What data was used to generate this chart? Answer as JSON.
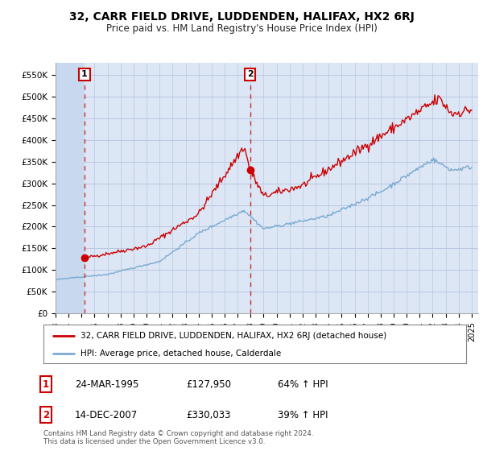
{
  "title": "32, CARR FIELD DRIVE, LUDDENDEN, HALIFAX, HX2 6RJ",
  "subtitle": "Price paid vs. HM Land Registry's House Price Index (HPI)",
  "background_color": "#dce6f5",
  "hatch_bg_color": "#c8d8ee",
  "grid_color": "#b8c8e0",
  "red_line_color": "#cc0000",
  "blue_line_color": "#7aaad0",
  "point1_x": 1995.22,
  "point1_y": 127950,
  "point2_x": 2007.96,
  "point2_y": 330033,
  "xmin": 1993.0,
  "xmax": 2025.5,
  "ymin": 0,
  "ymax": 577000,
  "yticks": [
    0,
    50000,
    100000,
    150000,
    200000,
    250000,
    300000,
    350000,
    400000,
    450000,
    500000,
    550000
  ],
  "ytick_labels": [
    "£0",
    "£50K",
    "£100K",
    "£150K",
    "£200K",
    "£250K",
    "£300K",
    "£350K",
    "£400K",
    "£450K",
    "£500K",
    "£550K"
  ],
  "xtick_years": [
    1993,
    1994,
    1995,
    1996,
    1997,
    1998,
    1999,
    2000,
    2001,
    2002,
    2003,
    2004,
    2005,
    2006,
    2007,
    2008,
    2009,
    2010,
    2011,
    2012,
    2013,
    2014,
    2015,
    2016,
    2017,
    2018,
    2019,
    2020,
    2021,
    2022,
    2023,
    2024,
    2025
  ],
  "legend_label_red": "32, CARR FIELD DRIVE, LUDDENDEN, HALIFAX, HX2 6RJ (detached house)",
  "legend_label_blue": "HPI: Average price, detached house, Calderdale",
  "sale1_date": "24-MAR-1995",
  "sale1_price": "£127,950",
  "sale1_hpi": "64% ↑ HPI",
  "sale2_date": "14-DEC-2007",
  "sale2_price": "£330,033",
  "sale2_hpi": "39% ↑ HPI",
  "footer": "Contains HM Land Registry data © Crown copyright and database right 2024.\nThis data is licensed under the Open Government Licence v3.0."
}
